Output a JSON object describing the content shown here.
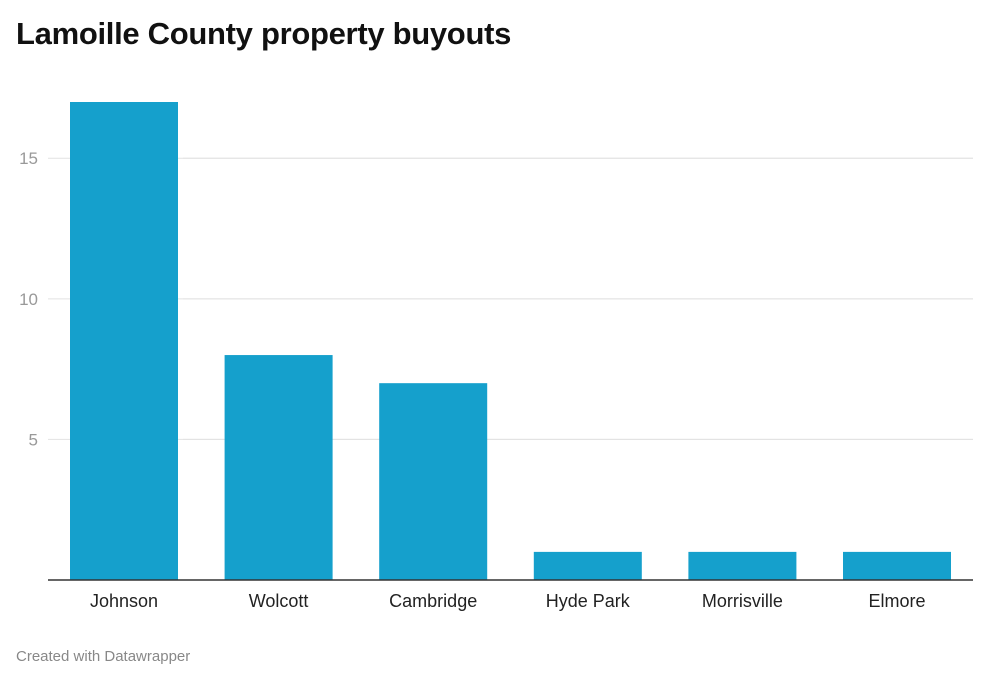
{
  "chart_data": {
    "type": "bar",
    "title": "Lamoille County property buyouts",
    "xlabel": "",
    "ylabel": "",
    "categories": [
      "Johnson",
      "Wolcott",
      "Cambridge",
      "Hyde Park",
      "Morrisville",
      "Elmore"
    ],
    "values": [
      17,
      8,
      7,
      1,
      1,
      1
    ],
    "ylim": [
      0,
      17
    ],
    "yticks": [
      5,
      10,
      15
    ],
    "grid": true,
    "bar_color": "#15a0cc"
  },
  "footer": "Created with Datawrapper"
}
